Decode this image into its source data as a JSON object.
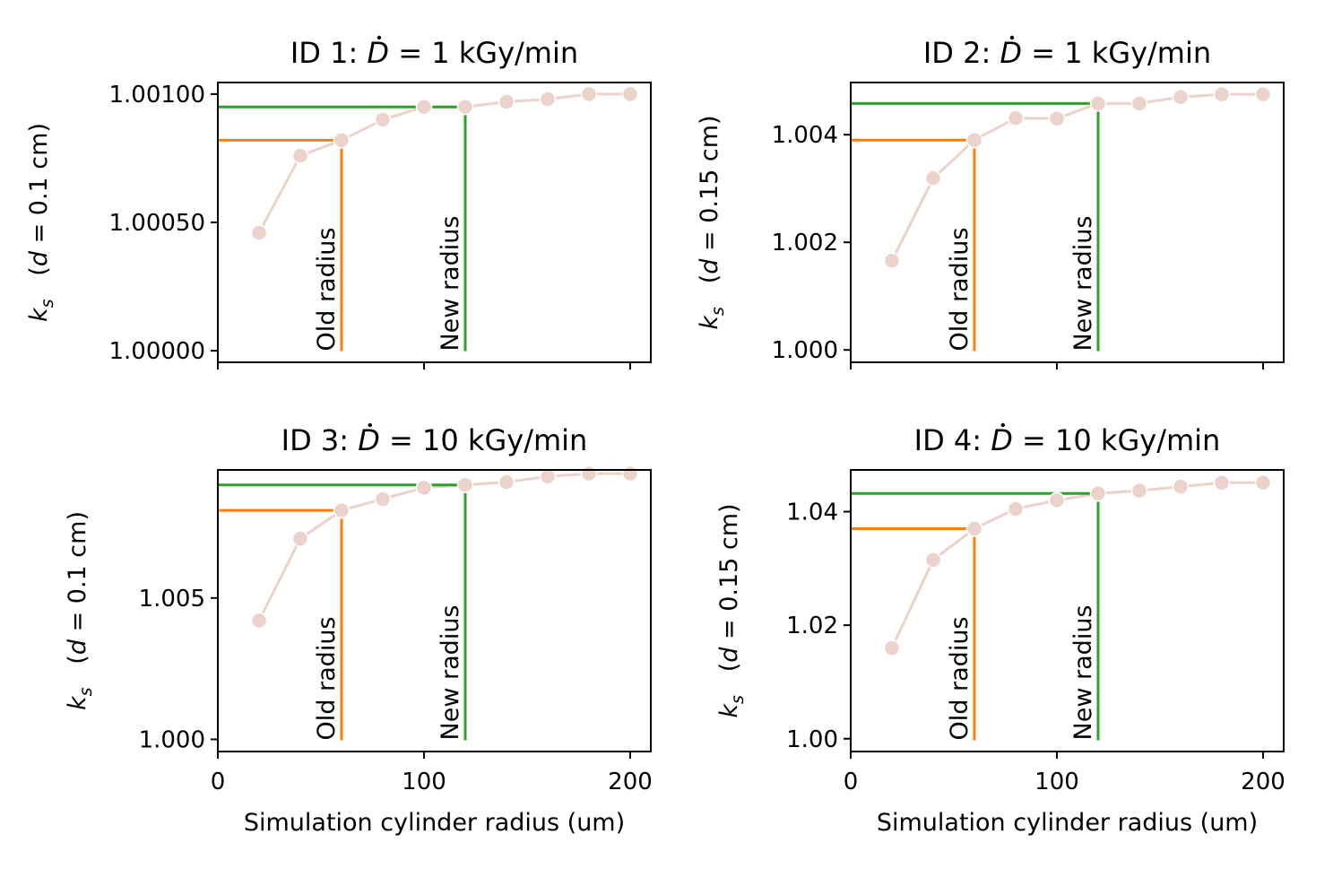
{
  "chart_data": [
    {
      "type": "line",
      "title_prefix": "ID 1: ",
      "title_symbol": "D",
      "title_suffix": " = 1 kGy/min",
      "ylabel_main": "k",
      "ylabel_sub": "s",
      "ylabel_paren_open": "(",
      "ylabel_var": "d",
      "ylabel_rest": " = 0.1 cm)",
      "xlabel": "",
      "x_ticks": [
        "0",
        "100",
        "200"
      ],
      "y_ticks": [
        {
          "value": 1.0,
          "label": "1.00000"
        },
        {
          "value": 1.0005,
          "label": "1.00050"
        },
        {
          "value": 1.001,
          "label": "1.00100"
        }
      ],
      "xlim": [
        0,
        210
      ],
      "ylim": [
        0.999955,
        1.001045
      ],
      "x": [
        20,
        40,
        60,
        80,
        100,
        120,
        140,
        160,
        180,
        200
      ],
      "y": [
        1.00046,
        1.00076,
        1.00082,
        1.0009,
        1.00095,
        1.00095,
        1.00097,
        1.00098,
        1.001,
        1.001
      ],
      "old_radius": {
        "label": "Old radius",
        "x": 60,
        "y": 1.00082
      },
      "new_radius": {
        "label": "New radius",
        "x": 120,
        "y": 1.00095
      }
    },
    {
      "type": "line",
      "title_prefix": "ID 2: ",
      "title_symbol": "D",
      "title_suffix": " = 1 kGy/min",
      "ylabel_main": "k",
      "ylabel_sub": "s",
      "ylabel_paren_open": "(",
      "ylabel_var": "d",
      "ylabel_rest": " = 0.15 cm)",
      "xlabel": "",
      "x_ticks": [
        "0",
        "100",
        "200"
      ],
      "y_ticks": [
        {
          "value": 1.0,
          "label": "1.000"
        },
        {
          "value": 1.002,
          "label": "1.002"
        },
        {
          "value": 1.004,
          "label": "1.004"
        }
      ],
      "xlim": [
        0,
        210
      ],
      "ylim": [
        0.99977,
        1.00497
      ],
      "x": [
        20,
        40,
        60,
        80,
        100,
        120,
        140,
        160,
        180,
        200
      ],
      "y": [
        1.00166,
        1.00319,
        1.0039,
        1.00431,
        1.0043,
        1.00458,
        1.00458,
        1.0047,
        1.00475,
        1.00475
      ],
      "old_radius": {
        "label": "Old radius",
        "x": 60,
        "y": 1.0039
      },
      "new_radius": {
        "label": "New radius",
        "x": 120,
        "y": 1.00458
      }
    },
    {
      "type": "line",
      "title_prefix": "ID 3: ",
      "title_symbol": "D",
      "title_suffix": " = 10 kGy/min",
      "ylabel_main": "k",
      "ylabel_sub": "s",
      "ylabel_paren_open": "(",
      "ylabel_var": "d",
      "ylabel_rest": " = 0.1 cm)",
      "xlabel": "Simulation cylinder radius (um)",
      "x_ticks": [
        "0",
        "100",
        "200"
      ],
      "y_ticks": [
        {
          "value": 1.0,
          "label": "1.000"
        },
        {
          "value": 1.005,
          "label": "1.005"
        }
      ],
      "xlim": [
        0,
        210
      ],
      "ylim": [
        0.99957,
        1.00953
      ],
      "x": [
        20,
        40,
        60,
        80,
        100,
        120,
        140,
        160,
        180,
        200
      ],
      "y": [
        1.0042,
        1.0071,
        1.0081,
        1.0085,
        1.0089,
        1.009,
        1.0091,
        1.0093,
        1.0094,
        1.0094
      ],
      "old_radius": {
        "label": "Old radius",
        "x": 60,
        "y": 1.0081
      },
      "new_radius": {
        "label": "New radius",
        "x": 120,
        "y": 1.009
      }
    },
    {
      "type": "line",
      "title_prefix": "ID 4: ",
      "title_symbol": "D",
      "title_suffix": " = 10 kGy/min",
      "ylabel_main": "k",
      "ylabel_sub": "s",
      "ylabel_paren_open": "(",
      "ylabel_var": "d",
      "ylabel_rest": " = 0.15 cm)",
      "xlabel": "Simulation cylinder radius (um)",
      "x_ticks": [
        "0",
        "100",
        "200"
      ],
      "y_ticks": [
        {
          "value": 1.0,
          "label": "1.00"
        },
        {
          "value": 1.02,
          "label": "1.02"
        },
        {
          "value": 1.04,
          "label": "1.04"
        }
      ],
      "xlim": [
        0,
        210
      ],
      "ylim": [
        0.99775,
        1.04735
      ],
      "x": [
        20,
        40,
        60,
        80,
        100,
        120,
        140,
        160,
        180,
        200
      ],
      "y": [
        1.016,
        1.0315,
        1.037,
        1.0405,
        1.042,
        1.0432,
        1.0437,
        1.0444,
        1.0451,
        1.0451
      ],
      "old_radius": {
        "label": "Old radius",
        "x": 60,
        "y": 1.037
      },
      "new_radius": {
        "label": "New radius",
        "x": 120,
        "y": 1.0432
      }
    }
  ],
  "colors": {
    "series": "#ebd2ca",
    "old_radius": "#ff7f0e",
    "new_radius": "#2ca02c",
    "axis": "#000000"
  }
}
